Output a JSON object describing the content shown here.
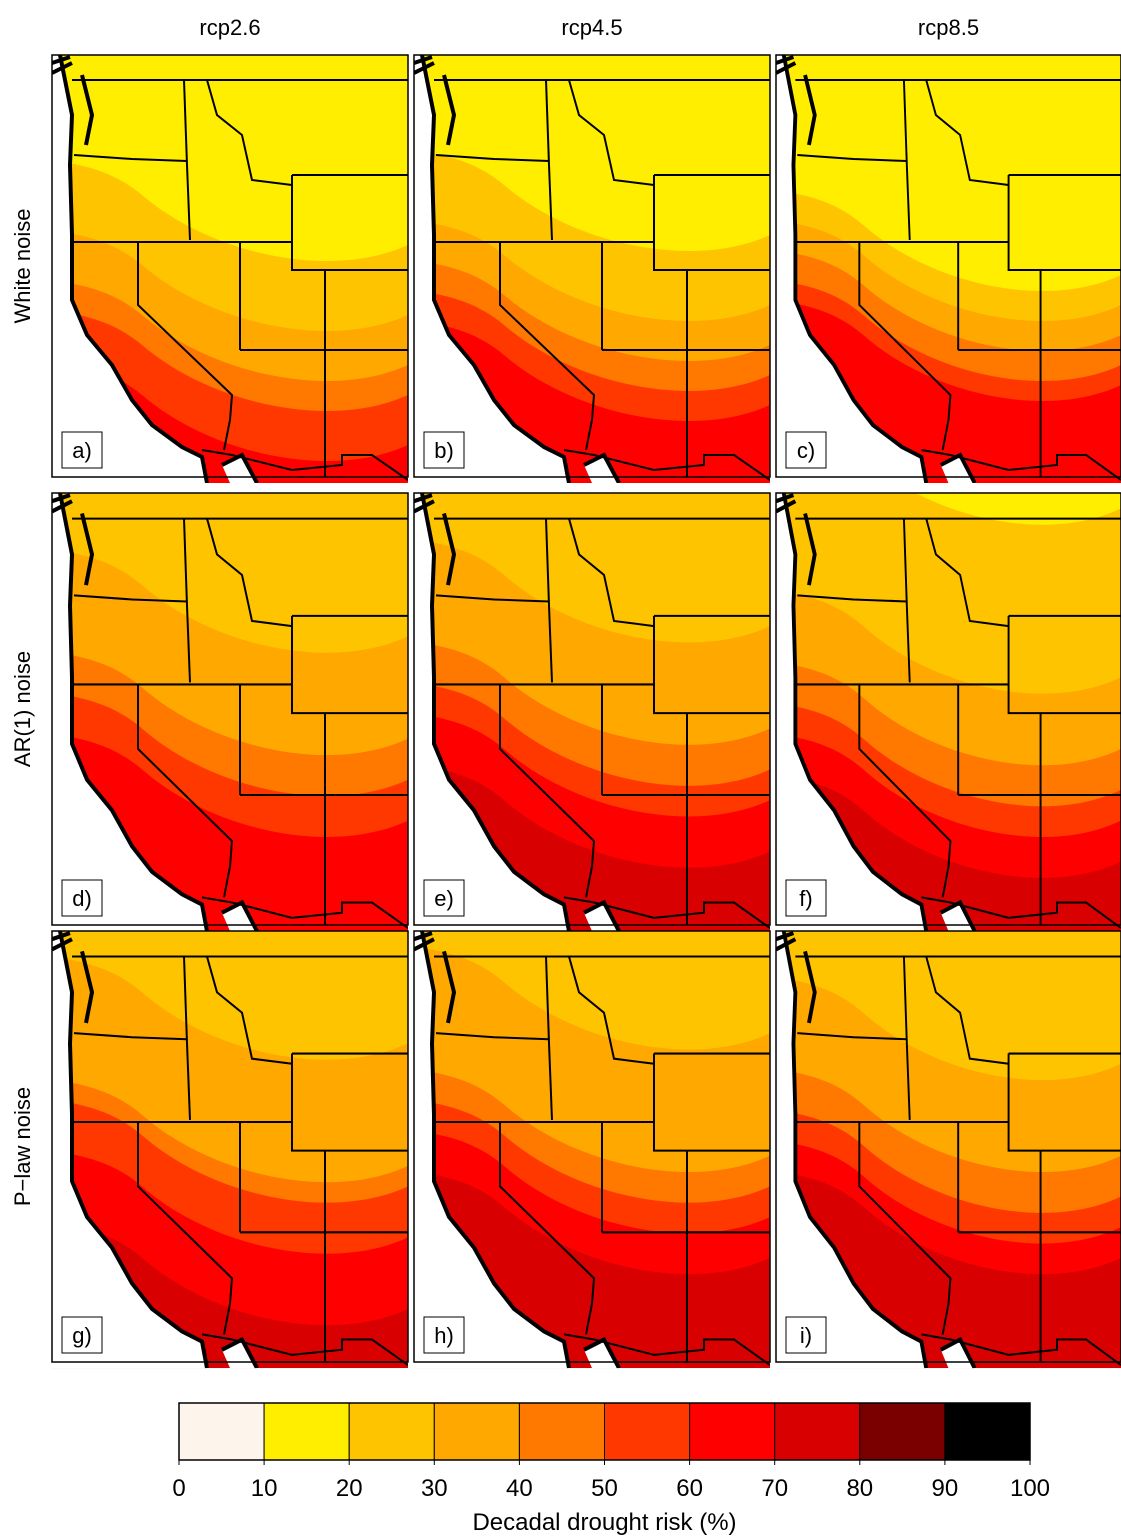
{
  "columns": [
    "rcp2.6",
    "rcp4.5",
    "rcp8.5"
  ],
  "rows": [
    "White noise",
    "AR(1) noise",
    "P−law noise"
  ],
  "panels": [
    "a)",
    "b)",
    "c)",
    "d)",
    "e)",
    "f)",
    "g)",
    "h)",
    "i)"
  ],
  "colorbar": {
    "label": "Decadal drought risk (%)",
    "ticks": [
      0,
      10,
      20,
      30,
      40,
      50,
      60,
      70,
      80,
      90,
      100
    ],
    "colors": [
      "#fdf5ec",
      "#ffee00",
      "#ffc400",
      "#ffa800",
      "#ff7800",
      "#ff3800",
      "#ff0000",
      "#d80000",
      "#7a0000",
      "#000000"
    ]
  }
}
